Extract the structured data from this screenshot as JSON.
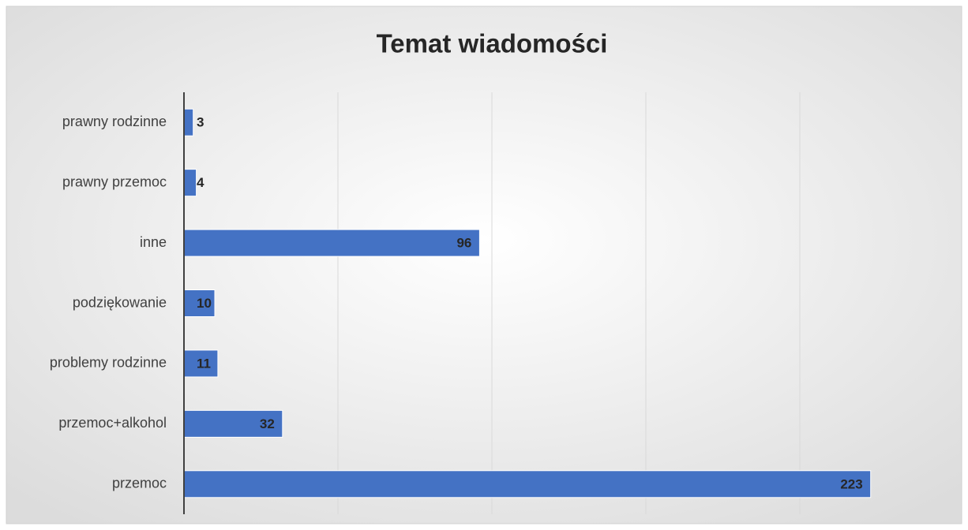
{
  "chart_data": {
    "type": "bar",
    "orientation": "horizontal",
    "title": "Temat wiadomości",
    "categories": [
      "prawny rodzinne",
      "prawny przemoc",
      "inne",
      "podziękowanie",
      "problemy rodzinne",
      "przemoc+alkohol",
      "przemoc"
    ],
    "values": [
      3,
      4,
      96,
      10,
      11,
      32,
      223
    ],
    "color": "#4472c4",
    "xlim": [
      0,
      250
    ],
    "xticks": [
      0,
      50,
      100,
      150,
      200
    ],
    "grid": true
  }
}
